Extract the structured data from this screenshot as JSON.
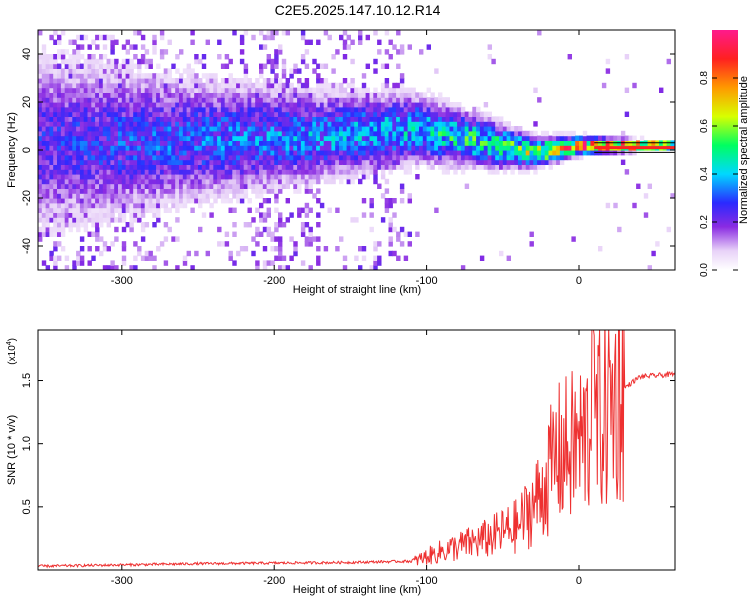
{
  "title": "C2E5.2025.147.10.12.R14",
  "chart_data": [
    {
      "type": "heatmap",
      "xlabel": "Height of straight line (km)",
      "ylabel": "Frequency (Hz)",
      "xlim": [
        -355,
        63
      ],
      "ylim": [
        -50,
        50
      ],
      "xticks": [
        -300,
        -200,
        -100,
        0
      ],
      "yticks": [
        -40,
        -20,
        0,
        20,
        40
      ],
      "colorbar": {
        "label": "Normalized spectral amplitude",
        "range": [
          0,
          1
        ],
        "ticks": [
          "0.0",
          "0.2",
          "0.4",
          "0.6",
          "0.8"
        ]
      },
      "signal_ridge": [
        {
          "x": -355,
          "center": 2,
          "spread": 30,
          "amp": 0.25
        },
        {
          "x": -270,
          "center": 3,
          "spread": 22,
          "amp": 0.3
        },
        {
          "x": -170,
          "center": 5,
          "spread": 15,
          "amp": 0.35
        },
        {
          "x": -110,
          "center": 8,
          "spread": 12,
          "amp": 0.4
        },
        {
          "x": -60,
          "center": 2,
          "spread": 8,
          "amp": 0.5
        },
        {
          "x": -30,
          "center": -2,
          "spread": 5,
          "amp": 0.6
        },
        {
          "x": 0,
          "center": 1,
          "spread": 3,
          "amp": 0.85
        },
        {
          "x": 63,
          "center": 1,
          "spread": 1,
          "amp": 1.0
        }
      ]
    },
    {
      "type": "line",
      "xlabel": "Height of straight line (km)",
      "ylabel": "SNR (10 * v/v)",
      "scale_note": "(x10",
      "scale_exp": "4",
      "xlim": [
        -355,
        63
      ],
      "ylim": [
        0,
        1.9
      ],
      "xticks": [
        -300,
        -200,
        -100,
        0
      ],
      "yticks": [
        "0.5",
        "1.0",
        "1.5"
      ],
      "color": "#ee3030",
      "envelope": [
        {
          "x": -355,
          "y": 0.02
        },
        {
          "x": -250,
          "y": 0.04
        },
        {
          "x": -150,
          "y": 0.05
        },
        {
          "x": -110,
          "y": 0.06
        },
        {
          "x": -90,
          "y": 0.15
        },
        {
          "x": -60,
          "y": 0.25
        },
        {
          "x": -40,
          "y": 0.35
        },
        {
          "x": -25,
          "y": 0.6
        },
        {
          "x": -15,
          "y": 0.9
        },
        {
          "x": 0,
          "y": 1.0
        },
        {
          "x": 15,
          "y": 1.2
        },
        {
          "x": 25,
          "y": 1.4
        },
        {
          "x": 40,
          "y": 1.53
        },
        {
          "x": 63,
          "y": 1.55
        }
      ]
    }
  ]
}
